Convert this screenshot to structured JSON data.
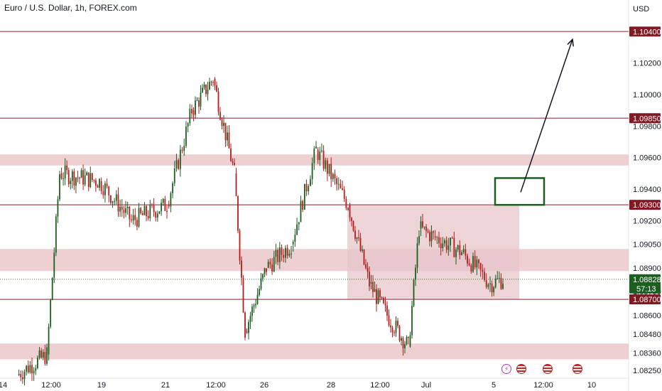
{
  "header": {
    "title": "Euro / U.S. Dollar, 1h, FOREX.com"
  },
  "currency": "USD",
  "colors": {
    "up": "#1b5e20",
    "down": "#b71c1c",
    "level_line": "#b06a73",
    "zone_fill": "#e8bfc3",
    "range_box": "#e5c5c9",
    "target_box": "#1b5e20",
    "tag_bg": "#801922",
    "current_bg": "#1b5e20",
    "axis_text": "#131722",
    "event_flash": "#b23bb8"
  },
  "chart_data": {
    "type": "candlestick",
    "y_range": [
      1.082,
      1.106
    ],
    "y_ticks": [
      "1.10200",
      "1.10000",
      "1.09800",
      "1.09600",
      "1.09400",
      "1.09200",
      "1.09050",
      "1.08900",
      "1.08750",
      "1.08600",
      "1.08480",
      "1.08360",
      "1.08250"
    ],
    "x_ticks": [
      "14",
      "12:00",
      "19",
      "12:00",
      "21",
      "12:00",
      "26",
      "12:00",
      "28",
      "12:00",
      "Jul",
      "12:00",
      "5",
      "12:00",
      "10"
    ],
    "levels": [
      {
        "price": 1.104,
        "label": "1.10400"
      },
      {
        "price": 1.0985,
        "label": "1.09850"
      },
      {
        "price": 1.093,
        "label": "1.09300"
      },
      {
        "price": 1.087,
        "label": "1.08700"
      }
    ],
    "zones": [
      {
        "from": 1.0955,
        "to": 1.0962
      },
      {
        "from": 1.0888,
        "to": 1.0902
      },
      {
        "from": 1.0832,
        "to": 1.0842
      }
    ],
    "range_box": {
      "top": 1.093,
      "bottom": 1.087
    },
    "target_box": {
      "top": 1.0947,
      "bottom": 1.093
    },
    "current_price": {
      "value": "1.08828",
      "countdown": "57:13"
    },
    "key_points": [
      {
        "x": "14",
        "price": 1.0822
      },
      {
        "x": "17 12:00",
        "price": 1.0835
      },
      {
        "x": "18",
        "price": 1.095
      },
      {
        "x": "19",
        "price": 1.0945
      },
      {
        "x": "20",
        "price": 1.092
      },
      {
        "x": "21",
        "price": 1.093
      },
      {
        "x": "21 12:00",
        "price": 1.099
      },
      {
        "x": "24",
        "price": 1.101
      },
      {
        "x": "25",
        "price": 1.095
      },
      {
        "x": "25 12:00",
        "price": 1.085
      },
      {
        "x": "26",
        "price": 1.089
      },
      {
        "x": "27",
        "price": 1.0905
      },
      {
        "x": "28",
        "price": 1.0965
      },
      {
        "x": "28 12:00",
        "price": 1.093
      },
      {
        "x": "1",
        "price": 1.088
      },
      {
        "x": "1 12:00",
        "price": 1.086
      },
      {
        "x": "2",
        "price": 1.084
      },
      {
        "x": "2 12:00",
        "price": 1.0915
      },
      {
        "x": "3",
        "price": 1.091
      },
      {
        "x": "4",
        "price": 1.09
      },
      {
        "x": "5",
        "price": 1.088
      },
      {
        "x": "5 12:00",
        "price": 1.08828
      }
    ],
    "arrow": {
      "from_price": 1.0938,
      "to_price": 1.1035
    }
  },
  "events": [
    {
      "icon": "flash-event-icon"
    },
    {
      "icon": "us-flag-icon"
    },
    {
      "icon": "us-flag-icon"
    },
    {
      "icon": "us-flag-icon"
    }
  ]
}
